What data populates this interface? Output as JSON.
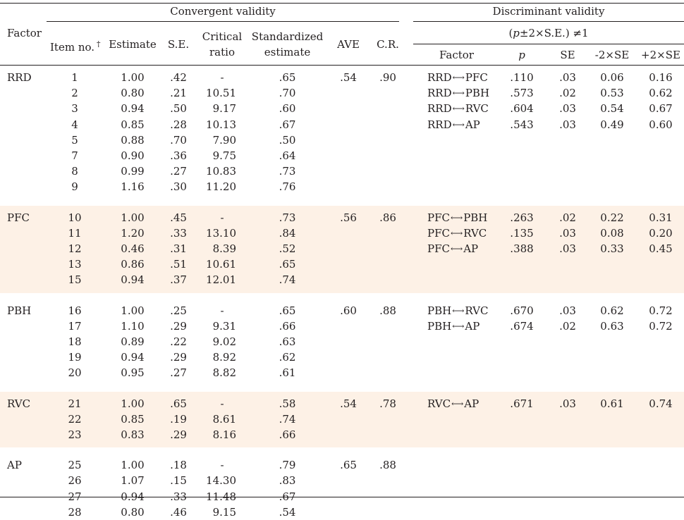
{
  "header": {
    "factor": "Factor",
    "convergent": "Convergent validity",
    "discriminant": "Discriminant validity",
    "item_no": "Item no.",
    "dagger": "†",
    "estimate": "Estimate",
    "se": "S.E.",
    "critical_ratio_1": "Critical",
    "critical_ratio_2": "ratio",
    "standardized_1": "Standardized",
    "standardized_2": "estimate",
    "ave": "AVE",
    "cr": "C.R.",
    "disc_condition": "(p±2×S.E.) ≠1",
    "disc_factor": "Factor",
    "disc_p": "p",
    "disc_se": "SE",
    "minus2se": "-2×SE",
    "plus2se": "+2×SE"
  },
  "groups": [
    {
      "factor": "RRD",
      "ave": ".54",
      "cr": ".90",
      "items": [
        {
          "no": "1",
          "est": "1.00",
          "se": ".42",
          "crit": "-",
          "std": ".65"
        },
        {
          "no": "2",
          "est": "0.80",
          "se": ".21",
          "crit": "10.51",
          "std": ".70"
        },
        {
          "no": "3",
          "est": "0.94",
          "se": ".50",
          "crit": "9.17",
          "std": ".60"
        },
        {
          "no": "4",
          "est": "0.85",
          "se": ".28",
          "crit": "10.13",
          "std": ".67"
        },
        {
          "no": "5",
          "est": "0.88",
          "se": ".70",
          "crit": "7.90",
          "std": ".50"
        },
        {
          "no": "7",
          "est": "0.90",
          "se": ".36",
          "crit": "9.75",
          "std": ".64"
        },
        {
          "no": "8",
          "est": "0.99",
          "se": ".27",
          "crit": "10.83",
          "std": ".73"
        },
        {
          "no": "9",
          "est": "1.16",
          "se": ".30",
          "crit": "11.20",
          "std": ".76"
        }
      ],
      "disc": [
        {
          "a": "RRD",
          "b": "PFC",
          "p": ".110",
          "se": ".03",
          "lo": "0.06",
          "hi": "0.16"
        },
        {
          "a": "RRD",
          "b": "PBH",
          "p": ".573",
          "se": ".02",
          "lo": "0.53",
          "hi": "0.62"
        },
        {
          "a": "RRD",
          "b": "RVC",
          "p": ".604",
          "se": ".03",
          "lo": "0.54",
          "hi": "0.67"
        },
        {
          "a": "RRD",
          "b": "AP",
          "p": ".543",
          "se": ".03",
          "lo": "0.49",
          "hi": "0.60"
        }
      ]
    },
    {
      "factor": "PFC",
      "ave": ".56",
      "cr": ".86",
      "items": [
        {
          "no": "10",
          "est": "1.00",
          "se": ".45",
          "crit": "-",
          "std": ".73"
        },
        {
          "no": "11",
          "est": "1.20",
          "se": ".33",
          "crit": "13.10",
          "std": ".84"
        },
        {
          "no": "12",
          "est": "0.46",
          "se": ".31",
          "crit": "8.39",
          "std": ".52"
        },
        {
          "no": "13",
          "est": "0.86",
          "se": ".51",
          "crit": "10.61",
          "std": ".65"
        },
        {
          "no": "15",
          "est": "0.94",
          "se": ".37",
          "crit": "12.01",
          "std": ".74"
        }
      ],
      "disc": [
        {
          "a": "PFC",
          "b": "PBH",
          "p": ".263",
          "se": ".02",
          "lo": "0.22",
          "hi": "0.31"
        },
        {
          "a": "PFC",
          "b": "RVC",
          "p": ".135",
          "se": ".03",
          "lo": "0.08",
          "hi": "0.20"
        },
        {
          "a": "PFC",
          "b": "AP",
          "p": ".388",
          "se": ".03",
          "lo": "0.33",
          "hi": "0.45"
        }
      ]
    },
    {
      "factor": "PBH",
      "ave": ".60",
      "cr": ".88",
      "items": [
        {
          "no": "16",
          "est": "1.00",
          "se": ".25",
          "crit": "-",
          "std": ".65"
        },
        {
          "no": "17",
          "est": "1.10",
          "se": ".29",
          "crit": "9.31",
          "std": ".66"
        },
        {
          "no": "18",
          "est": "0.89",
          "se": ".22",
          "crit": "9.02",
          "std": ".63"
        },
        {
          "no": "19",
          "est": "0.94",
          "se": ".29",
          "crit": "8.92",
          "std": ".62"
        },
        {
          "no": "20",
          "est": "0.95",
          "se": ".27",
          "crit": "8.82",
          "std": ".61"
        }
      ],
      "disc": [
        {
          "a": "PBH",
          "b": "RVC",
          "p": ".670",
          "se": ".03",
          "lo": "0.62",
          "hi": "0.72"
        },
        {
          "a": "PBH",
          "b": "AP",
          "p": ".674",
          "se": ".02",
          "lo": "0.63",
          "hi": "0.72"
        }
      ]
    },
    {
      "factor": "RVC",
      "ave": ".54",
      "cr": ".78",
      "items": [
        {
          "no": "21",
          "est": "1.00",
          "se": ".65",
          "crit": "-",
          "std": ".58"
        },
        {
          "no": "22",
          "est": "0.85",
          "se": ".19",
          "crit": "8.61",
          "std": ".74"
        },
        {
          "no": "23",
          "est": "0.83",
          "se": ".29",
          "crit": "8.16",
          "std": ".66"
        }
      ],
      "disc": [
        {
          "a": "RVC",
          "b": "AP",
          "p": ".671",
          "se": ".03",
          "lo": "0.61",
          "hi": "0.74"
        }
      ]
    },
    {
      "factor": "AP",
      "ave": ".65",
      "cr": ".88",
      "items": [
        {
          "no": "25",
          "est": "1.00",
          "se": ".18",
          "crit": "-",
          "std": ".79"
        },
        {
          "no": "26",
          "est": "1.07",
          "se": ".15",
          "crit": "14.30",
          "std": ".83"
        },
        {
          "no": "27",
          "est": "0.94",
          "se": ".33",
          "crit": "11.48",
          "std": ".67"
        },
        {
          "no": "28",
          "est": "0.80",
          "se": ".46",
          "crit": "9.15",
          "std": ".54"
        }
      ],
      "disc": []
    }
  ],
  "colors": {
    "band": "#fdf1e6",
    "rule": "#231f20",
    "text": "#231f20"
  }
}
